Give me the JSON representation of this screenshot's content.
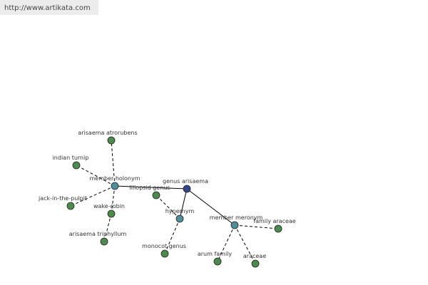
{
  "header": {
    "url": "http://www.artikata.com"
  },
  "nodes": [
    {
      "label": "genus arisaema"
    },
    {
      "label": "member holonym"
    },
    {
      "label": "hypernym"
    },
    {
      "label": "member meronym"
    },
    {
      "label": "arisaema atrorubens"
    },
    {
      "label": "indian turnip"
    },
    {
      "label": "jack-in-the-pulpit"
    },
    {
      "label": "wake-robin"
    },
    {
      "label": "arisaema triphyllum"
    },
    {
      "label": "liliopsid genus"
    },
    {
      "label": "monocot genus"
    },
    {
      "label": "family araceae"
    },
    {
      "label": "arum family"
    },
    {
      "label": "araceae"
    }
  ]
}
